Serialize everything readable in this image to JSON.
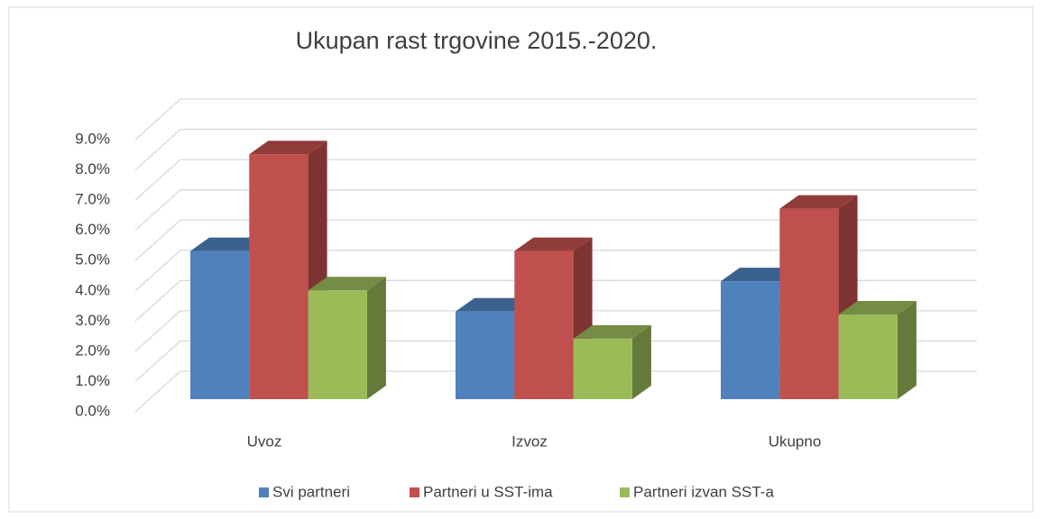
{
  "chart_data": {
    "type": "bar3d",
    "title": "Ukupan rast trgovine 2015.-2020.",
    "categories": [
      "Uvoz",
      "Izvoz",
      "Ukupno"
    ],
    "series": [
      {
        "name": "Svi partneri",
        "color": "#4f81bd",
        "values": [
          4.9,
          2.9,
          3.9
        ]
      },
      {
        "name": "Partneri u SST-ima",
        "color": "#c0504d",
        "values": [
          8.1,
          4.9,
          6.3
        ]
      },
      {
        "name": "Partneri izvan SST-a",
        "color": "#9bbb59",
        "values": [
          3.6,
          2.0,
          2.8
        ]
      }
    ],
    "ylim": [
      0,
      9
    ],
    "yticks": [
      {
        "value": 0,
        "label": "0.0%"
      },
      {
        "value": 1,
        "label": "1.0%"
      },
      {
        "value": 2,
        "label": "2.0%"
      },
      {
        "value": 3,
        "label": "3.0%"
      },
      {
        "value": 4,
        "label": "4.0%"
      },
      {
        "value": 5,
        "label": "5.0%"
      },
      {
        "value": 6,
        "label": "6.0%"
      },
      {
        "value": 7,
        "label": "7.0%"
      },
      {
        "value": 8,
        "label": "8.0%"
      },
      {
        "value": 9,
        "label": "9.0%"
      }
    ],
    "grid": true,
    "legend": "bottom"
  }
}
